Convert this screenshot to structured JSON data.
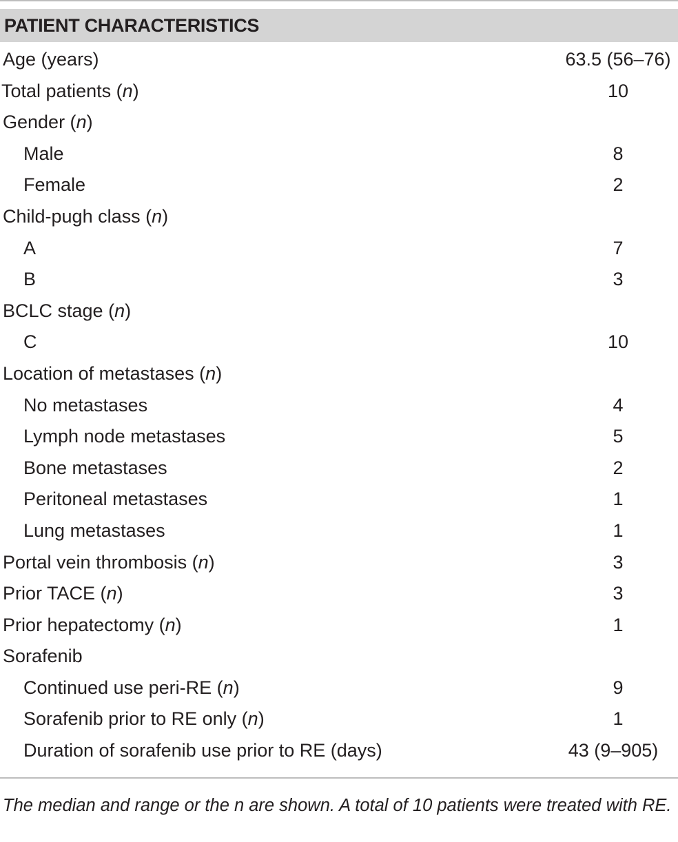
{
  "table": {
    "header": "PATIENT CHARACTERISTICS",
    "rows": [
      {
        "label": "Age (years)",
        "n": "",
        "value": "63.5 (56–76)",
        "indent": 0
      },
      {
        "label": "Total patients (",
        "n": "n",
        "suffix": ")",
        "value": "10",
        "indent": 0
      },
      {
        "label": "Gender (",
        "n": "n",
        "suffix": ")",
        "value": "",
        "indent": 0
      },
      {
        "label": "Male",
        "n": "",
        "value": "8",
        "indent": 1
      },
      {
        "label": "Female",
        "n": "",
        "value": "2",
        "indent": 1
      },
      {
        "label": "Child-pugh class (",
        "n": "n",
        "suffix": ")",
        "value": "",
        "indent": 0
      },
      {
        "label": "A",
        "n": "",
        "value": "7",
        "indent": 1
      },
      {
        "label": "B",
        "n": "",
        "value": "3",
        "indent": 1
      },
      {
        "label": "BCLC stage (",
        "n": "n",
        "suffix": ")",
        "value": "",
        "indent": 0
      },
      {
        "label": "C",
        "n": "",
        "value": "10",
        "indent": 1
      },
      {
        "label": "Location of metastases (",
        "n": "n",
        "suffix": ")",
        "value": "",
        "indent": 0
      },
      {
        "label": "No metastases",
        "n": "",
        "value": "4",
        "indent": 1
      },
      {
        "label": "Lymph node metastases",
        "n": "",
        "value": "5",
        "indent": 1
      },
      {
        "label": "Bone metastases",
        "n": "",
        "value": "2",
        "indent": 1
      },
      {
        "label": "Peritoneal metastases",
        "n": "",
        "value": "1",
        "indent": 1
      },
      {
        "label": "Lung metastases",
        "n": "",
        "value": "1",
        "indent": 1
      },
      {
        "label": "Portal vein thrombosis (",
        "n": "n",
        "suffix": ")",
        "value": "3",
        "indent": 0
      },
      {
        "label": "Prior TACE (",
        "n": "n",
        "suffix": ")",
        "value": "3",
        "indent": 0
      },
      {
        "label": "Prior hepatectomy (",
        "n": "n",
        "suffix": ")",
        "value": "1",
        "indent": 0
      },
      {
        "label": "Sorafenib",
        "n": "",
        "value": "",
        "indent": 0
      },
      {
        "label": "Continued use peri-RE (",
        "n": "n",
        "suffix": ")",
        "value": "9",
        "indent": 1
      },
      {
        "label": "Sorafenib prior to RE only (",
        "n": "n",
        "suffix": ")",
        "value": "1",
        "indent": 1
      },
      {
        "label": "Duration of sorafenib use prior to RE (days)",
        "n": "",
        "value": "43 (9–905)",
        "indent": 1
      }
    ]
  },
  "footnote": "The median and range or the n are shown. A total of 10 patients were treated with RE."
}
